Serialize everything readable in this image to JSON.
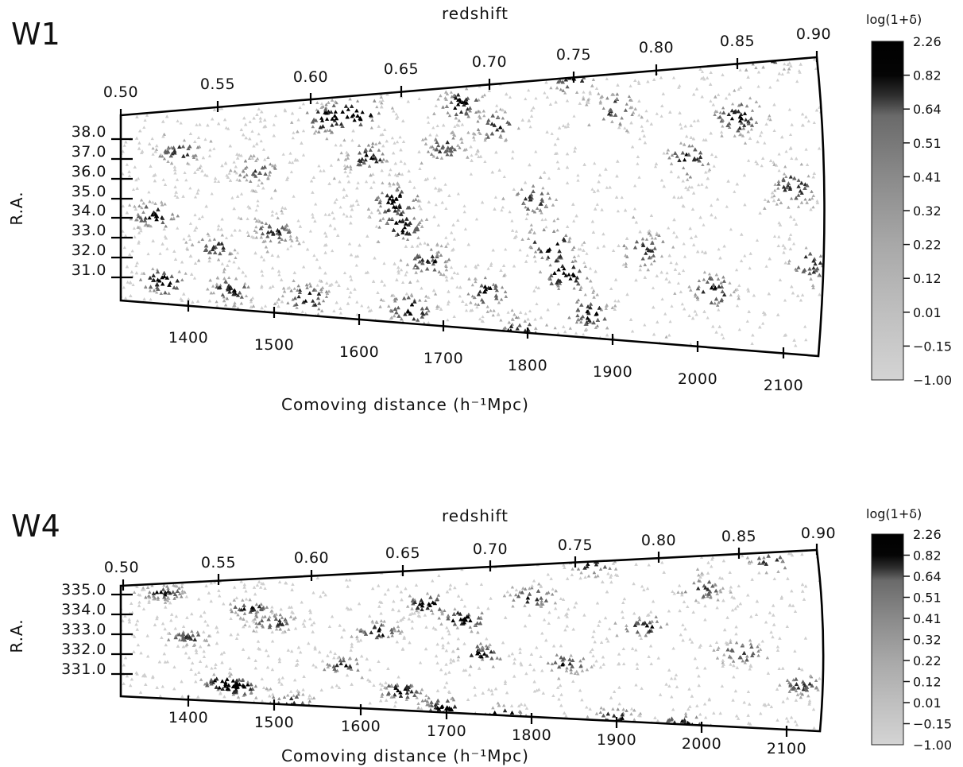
{
  "chart_data": [
    {
      "type": "scatter",
      "panel_label": "W1",
      "top_axis_title": "redshift",
      "redshift_ticks": [
        "0.50",
        "0.55",
        "0.60",
        "0.65",
        "0.70",
        "0.75",
        "0.80",
        "0.85",
        "0.90"
      ],
      "xlabel": "Comoving distance (h⁻¹Mpc)",
      "xticks": [
        "1400",
        "1500",
        "1600",
        "1700",
        "1800",
        "1900",
        "2000",
        "2100"
      ],
      "ylabel": "R.A.",
      "yticks": [
        "38.0",
        "37.0",
        "36.0",
        "35.0",
        "34.0",
        "33.0",
        "32.0",
        "31.0"
      ],
      "xlim": [
        1320,
        2140
      ],
      "ylim": [
        30.1,
        38.6
      ],
      "colorbar": {
        "title": "log(1+δ)",
        "labels": [
          "2.26",
          "0.82",
          "0.64",
          "0.51",
          "0.41",
          "0.32",
          "0.22",
          "0.12",
          "0.01",
          "−0.15",
          "−1.00"
        ]
      },
      "clusters": [
        [
          1360,
          34.0,
          1.0
        ],
        [
          1370,
          31.1,
          1.2
        ],
        [
          1390,
          36.8,
          0.9
        ],
        [
          1430,
          32.6,
          0.8
        ],
        [
          1450,
          30.9,
          0.9
        ],
        [
          1480,
          35.9,
          0.7
        ],
        [
          1500,
          33.4,
          0.8
        ],
        [
          1540,
          30.8,
          1.0
        ],
        [
          1560,
          37.8,
          1.0
        ],
        [
          1600,
          37.9,
          1.2
        ],
        [
          1610,
          36.2,
          0.9
        ],
        [
          1640,
          34.6,
          1.1
        ],
        [
          1650,
          33.6,
          1.0
        ],
        [
          1660,
          30.6,
          1.1
        ],
        [
          1680,
          32.4,
          0.8
        ],
        [
          1700,
          36.5,
          0.7
        ],
        [
          1720,
          38.0,
          1.0
        ],
        [
          1750,
          31.4,
          0.9
        ],
        [
          1760,
          37.1,
          0.8
        ],
        [
          1790,
          30.0,
          1.1
        ],
        [
          1800,
          34.6,
          0.8
        ],
        [
          1820,
          33.1,
          1.2
        ],
        [
          1840,
          32.1,
          1.1
        ],
        [
          1850,
          38.6,
          1.0
        ],
        [
          1870,
          30.9,
          0.9
        ],
        [
          1900,
          37.5,
          0.8
        ],
        [
          1930,
          33.0,
          0.8
        ],
        [
          1960,
          29.6,
          1.0
        ],
        [
          1980,
          35.8,
          0.9
        ],
        [
          2010,
          31.8,
          0.9
        ],
        [
          2040,
          37.0,
          0.9
        ],
        [
          2080,
          38.9,
          1.0
        ],
        [
          2100,
          34.9,
          0.9
        ],
        [
          2120,
          32.7,
          0.8
        ]
      ]
    },
    {
      "type": "scatter",
      "panel_label": "W4",
      "top_axis_title": "redshift",
      "redshift_ticks": [
        "0.50",
        "0.55",
        "0.60",
        "0.65",
        "0.70",
        "0.75",
        "0.80",
        "0.85",
        "0.90"
      ],
      "xlabel": "Comoving distance (h⁻¹Mpc)",
      "xticks": [
        "1400",
        "1500",
        "1600",
        "1700",
        "1800",
        "1900",
        "2000",
        "2100"
      ],
      "ylabel": "R.A.",
      "yticks": [
        "335.0",
        "334.0",
        "333.0",
        "332.0",
        "331.0"
      ],
      "xlim": [
        1320,
        2140
      ],
      "ylim": [
        330.3,
        335.4
      ],
      "colorbar": {
        "title": "log(1+δ)",
        "labels": [
          "2.26",
          "0.82",
          "0.64",
          "0.51",
          "0.41",
          "0.32",
          "0.22",
          "0.12",
          "0.01",
          "−0.15",
          "−1.00"
        ]
      },
      "clusters": [
        [
          1370,
          335.0,
          0.9
        ],
        [
          1400,
          333.0,
          0.8
        ],
        [
          1440,
          331.1,
          1.0
        ],
        [
          1460,
          330.9,
          1.0
        ],
        [
          1470,
          334.2,
          0.9
        ],
        [
          1500,
          333.6,
          0.8
        ],
        [
          1520,
          330.4,
          0.9
        ],
        [
          1580,
          331.9,
          0.8
        ],
        [
          1620,
          333.2,
          1.0
        ],
        [
          1650,
          331.0,
          1.0
        ],
        [
          1680,
          334.2,
          1.2
        ],
        [
          1700,
          330.5,
          1.0
        ],
        [
          1720,
          333.6,
          1.2
        ],
        [
          1740,
          332.4,
          0.9
        ],
        [
          1770,
          330.3,
          1.1
        ],
        [
          1800,
          334.3,
          0.9
        ],
        [
          1840,
          332.1,
          0.8
        ],
        [
          1870,
          335.3,
          0.8
        ],
        [
          1900,
          330.4,
          0.9
        ],
        [
          1930,
          333.3,
          0.9
        ],
        [
          1980,
          330.3,
          1.0
        ],
        [
          2000,
          334.4,
          0.8
        ],
        [
          2040,
          332.5,
          0.8
        ],
        [
          2080,
          335.1,
          0.9
        ],
        [
          2110,
          331.6,
          0.8
        ]
      ]
    }
  ]
}
